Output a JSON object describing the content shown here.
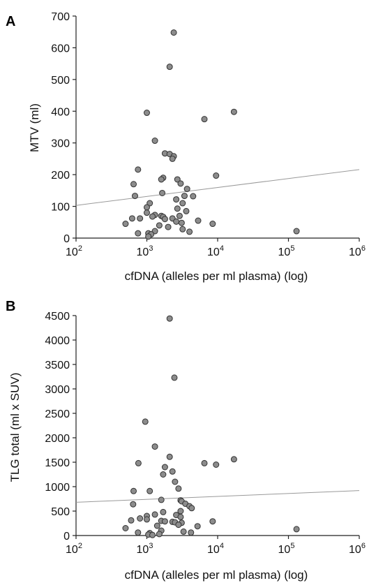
{
  "chart_data": [
    {
      "panel": "A",
      "type": "scatter",
      "title": "",
      "xlabel": "cfDNA (alleles per ml plasma) (log)",
      "ylabel": "MTV (ml)",
      "xscale": "log",
      "xlim": [
        100,
        1000000
      ],
      "ylim": [
        0,
        700
      ],
      "yticks": [
        0,
        100,
        200,
        300,
        400,
        500,
        600,
        700
      ],
      "xticks": [
        {
          "value": 100,
          "base": "10",
          "exp": "2"
        },
        {
          "value": 1000,
          "base": "10",
          "exp": "3"
        },
        {
          "value": 10000,
          "base": "10",
          "exp": "4"
        },
        {
          "value": 100000,
          "base": "10",
          "exp": "5"
        },
        {
          "value": 1000000,
          "base": "10",
          "exp": "6"
        }
      ],
      "grid": false,
      "marker_color": "#8c8c8c",
      "trendline": {
        "x": [
          100,
          1000000
        ],
        "y": [
          103,
          216
        ],
        "color": "#999999"
      },
      "points": [
        {
          "x": 2400,
          "y": 648
        },
        {
          "x": 2100,
          "y": 540
        },
        {
          "x": 1000,
          "y": 395
        },
        {
          "x": 17000,
          "y": 398
        },
        {
          "x": 6500,
          "y": 375
        },
        {
          "x": 1300,
          "y": 307
        },
        {
          "x": 1800,
          "y": 267
        },
        {
          "x": 2100,
          "y": 265
        },
        {
          "x": 2400,
          "y": 258
        },
        {
          "x": 2300,
          "y": 250
        },
        {
          "x": 750,
          "y": 216
        },
        {
          "x": 9500,
          "y": 197
        },
        {
          "x": 1700,
          "y": 190
        },
        {
          "x": 1600,
          "y": 185
        },
        {
          "x": 2700,
          "y": 185
        },
        {
          "x": 3000,
          "y": 172
        },
        {
          "x": 650,
          "y": 170
        },
        {
          "x": 3700,
          "y": 155
        },
        {
          "x": 1650,
          "y": 142
        },
        {
          "x": 680,
          "y": 133
        },
        {
          "x": 3400,
          "y": 133
        },
        {
          "x": 4500,
          "y": 132
        },
        {
          "x": 2600,
          "y": 122
        },
        {
          "x": 3200,
          "y": 110
        },
        {
          "x": 1100,
          "y": 110
        },
        {
          "x": 1000,
          "y": 97
        },
        {
          "x": 2700,
          "y": 93
        },
        {
          "x": 3600,
          "y": 85
        },
        {
          "x": 1000,
          "y": 80
        },
        {
          "x": 1300,
          "y": 73
        },
        {
          "x": 1600,
          "y": 70
        },
        {
          "x": 1700,
          "y": 67
        },
        {
          "x": 2900,
          "y": 70
        },
        {
          "x": 2300,
          "y": 62
        },
        {
          "x": 1200,
          "y": 68
        },
        {
          "x": 620,
          "y": 62
        },
        {
          "x": 800,
          "y": 62
        },
        {
          "x": 2600,
          "y": 52
        },
        {
          "x": 5300,
          "y": 55
        },
        {
          "x": 3100,
          "y": 48
        },
        {
          "x": 500,
          "y": 45
        },
        {
          "x": 8500,
          "y": 45
        },
        {
          "x": 1500,
          "y": 40
        },
        {
          "x": 2000,
          "y": 35
        },
        {
          "x": 3200,
          "y": 28
        },
        {
          "x": 1300,
          "y": 22
        },
        {
          "x": 4000,
          "y": 20
        },
        {
          "x": 750,
          "y": 15
        },
        {
          "x": 1050,
          "y": 15
        },
        {
          "x": 1150,
          "y": 12
        },
        {
          "x": 1050,
          "y": 5
        },
        {
          "x": 130000,
          "y": 22
        },
        {
          "x": 1800,
          "y": 60
        }
      ]
    },
    {
      "panel": "B",
      "type": "scatter",
      "title": "",
      "xlabel": "cfDNA (alleles per ml plasma) (log)",
      "ylabel": "TLG total (ml x SUV)",
      "xscale": "log",
      "xlim": [
        100,
        1000000
      ],
      "ylim": [
        0,
        4500
      ],
      "yticks": [
        0,
        500,
        1000,
        1500,
        2000,
        2500,
        3000,
        3500,
        4000,
        4500
      ],
      "xticks": [
        {
          "value": 100,
          "base": "10",
          "exp": "2"
        },
        {
          "value": 1000,
          "base": "10",
          "exp": "3"
        },
        {
          "value": 10000,
          "base": "10",
          "exp": "4"
        },
        {
          "value": 100000,
          "base": "10",
          "exp": "5"
        },
        {
          "value": 1000000,
          "base": "10",
          "exp": "6"
        }
      ],
      "grid": false,
      "marker_color": "#8c8c8c",
      "trendline": {
        "x": [
          100,
          1000000
        ],
        "y": [
          680,
          920
        ],
        "color": "#999999"
      },
      "points": [
        {
          "x": 2100,
          "y": 4440
        },
        {
          "x": 2450,
          "y": 3230
        },
        {
          "x": 950,
          "y": 2330
        },
        {
          "x": 1300,
          "y": 1820
        },
        {
          "x": 2100,
          "y": 1610
        },
        {
          "x": 17000,
          "y": 1560
        },
        {
          "x": 6500,
          "y": 1480
        },
        {
          "x": 9500,
          "y": 1450
        },
        {
          "x": 760,
          "y": 1480
        },
        {
          "x": 1800,
          "y": 1400
        },
        {
          "x": 2300,
          "y": 1310
        },
        {
          "x": 1700,
          "y": 1250
        },
        {
          "x": 2500,
          "y": 1100
        },
        {
          "x": 2800,
          "y": 960
        },
        {
          "x": 650,
          "y": 910
        },
        {
          "x": 1100,
          "y": 910
        },
        {
          "x": 1600,
          "y": 730
        },
        {
          "x": 3000,
          "y": 720
        },
        {
          "x": 3100,
          "y": 700
        },
        {
          "x": 3500,
          "y": 650
        },
        {
          "x": 640,
          "y": 640
        },
        {
          "x": 4000,
          "y": 600
        },
        {
          "x": 4300,
          "y": 560
        },
        {
          "x": 1700,
          "y": 480
        },
        {
          "x": 3000,
          "y": 500
        },
        {
          "x": 1000,
          "y": 400
        },
        {
          "x": 1300,
          "y": 430
        },
        {
          "x": 2600,
          "y": 420
        },
        {
          "x": 3000,
          "y": 380
        },
        {
          "x": 800,
          "y": 350
        },
        {
          "x": 600,
          "y": 310
        },
        {
          "x": 1000,
          "y": 330
        },
        {
          "x": 1600,
          "y": 300
        },
        {
          "x": 1800,
          "y": 290
        },
        {
          "x": 2300,
          "y": 280
        },
        {
          "x": 2500,
          "y": 270
        },
        {
          "x": 3100,
          "y": 260
        },
        {
          "x": 8500,
          "y": 290
        },
        {
          "x": 2800,
          "y": 220
        },
        {
          "x": 1400,
          "y": 200
        },
        {
          "x": 5200,
          "y": 190
        },
        {
          "x": 500,
          "y": 150
        },
        {
          "x": 130000,
          "y": 130
        },
        {
          "x": 1600,
          "y": 100
        },
        {
          "x": 3300,
          "y": 80
        },
        {
          "x": 750,
          "y": 60
        },
        {
          "x": 4200,
          "y": 60
        },
        {
          "x": 1100,
          "y": 50
        },
        {
          "x": 1050,
          "y": 20
        },
        {
          "x": 1200,
          "y": 10
        },
        {
          "x": 1500,
          "y": 30
        }
      ]
    }
  ]
}
